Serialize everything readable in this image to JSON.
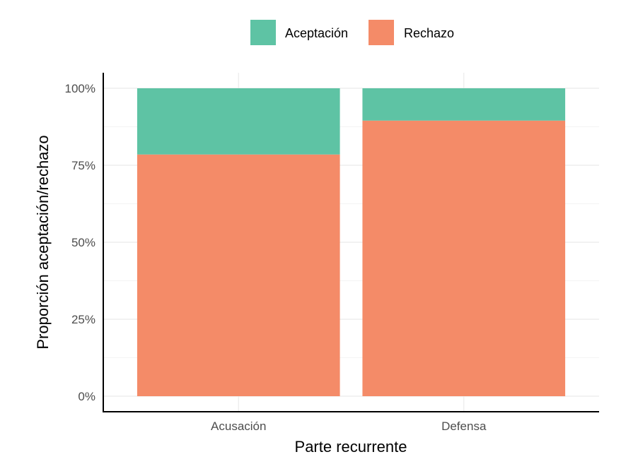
{
  "chart_data": {
    "type": "bar",
    "stacked": true,
    "categories": [
      "Acusación",
      "Defensa"
    ],
    "series": [
      {
        "name": "Rechazo",
        "values": [
          78.5,
          89.5
        ],
        "color": "#f48b68"
      },
      {
        "name": "Aceptación",
        "values": [
          21.5,
          10.5
        ],
        "color": "#5ec3a4"
      }
    ],
    "xlabel": "Parte recurrente",
    "ylabel": "Proporción aceptación/rechazo",
    "ylim": [
      0,
      100
    ],
    "yticks": [
      "0%",
      "25%",
      "50%",
      "75%",
      "100%"
    ],
    "legend": {
      "position": "top",
      "items": [
        "Aceptación",
        "Rechazo"
      ]
    },
    "grid": true
  }
}
